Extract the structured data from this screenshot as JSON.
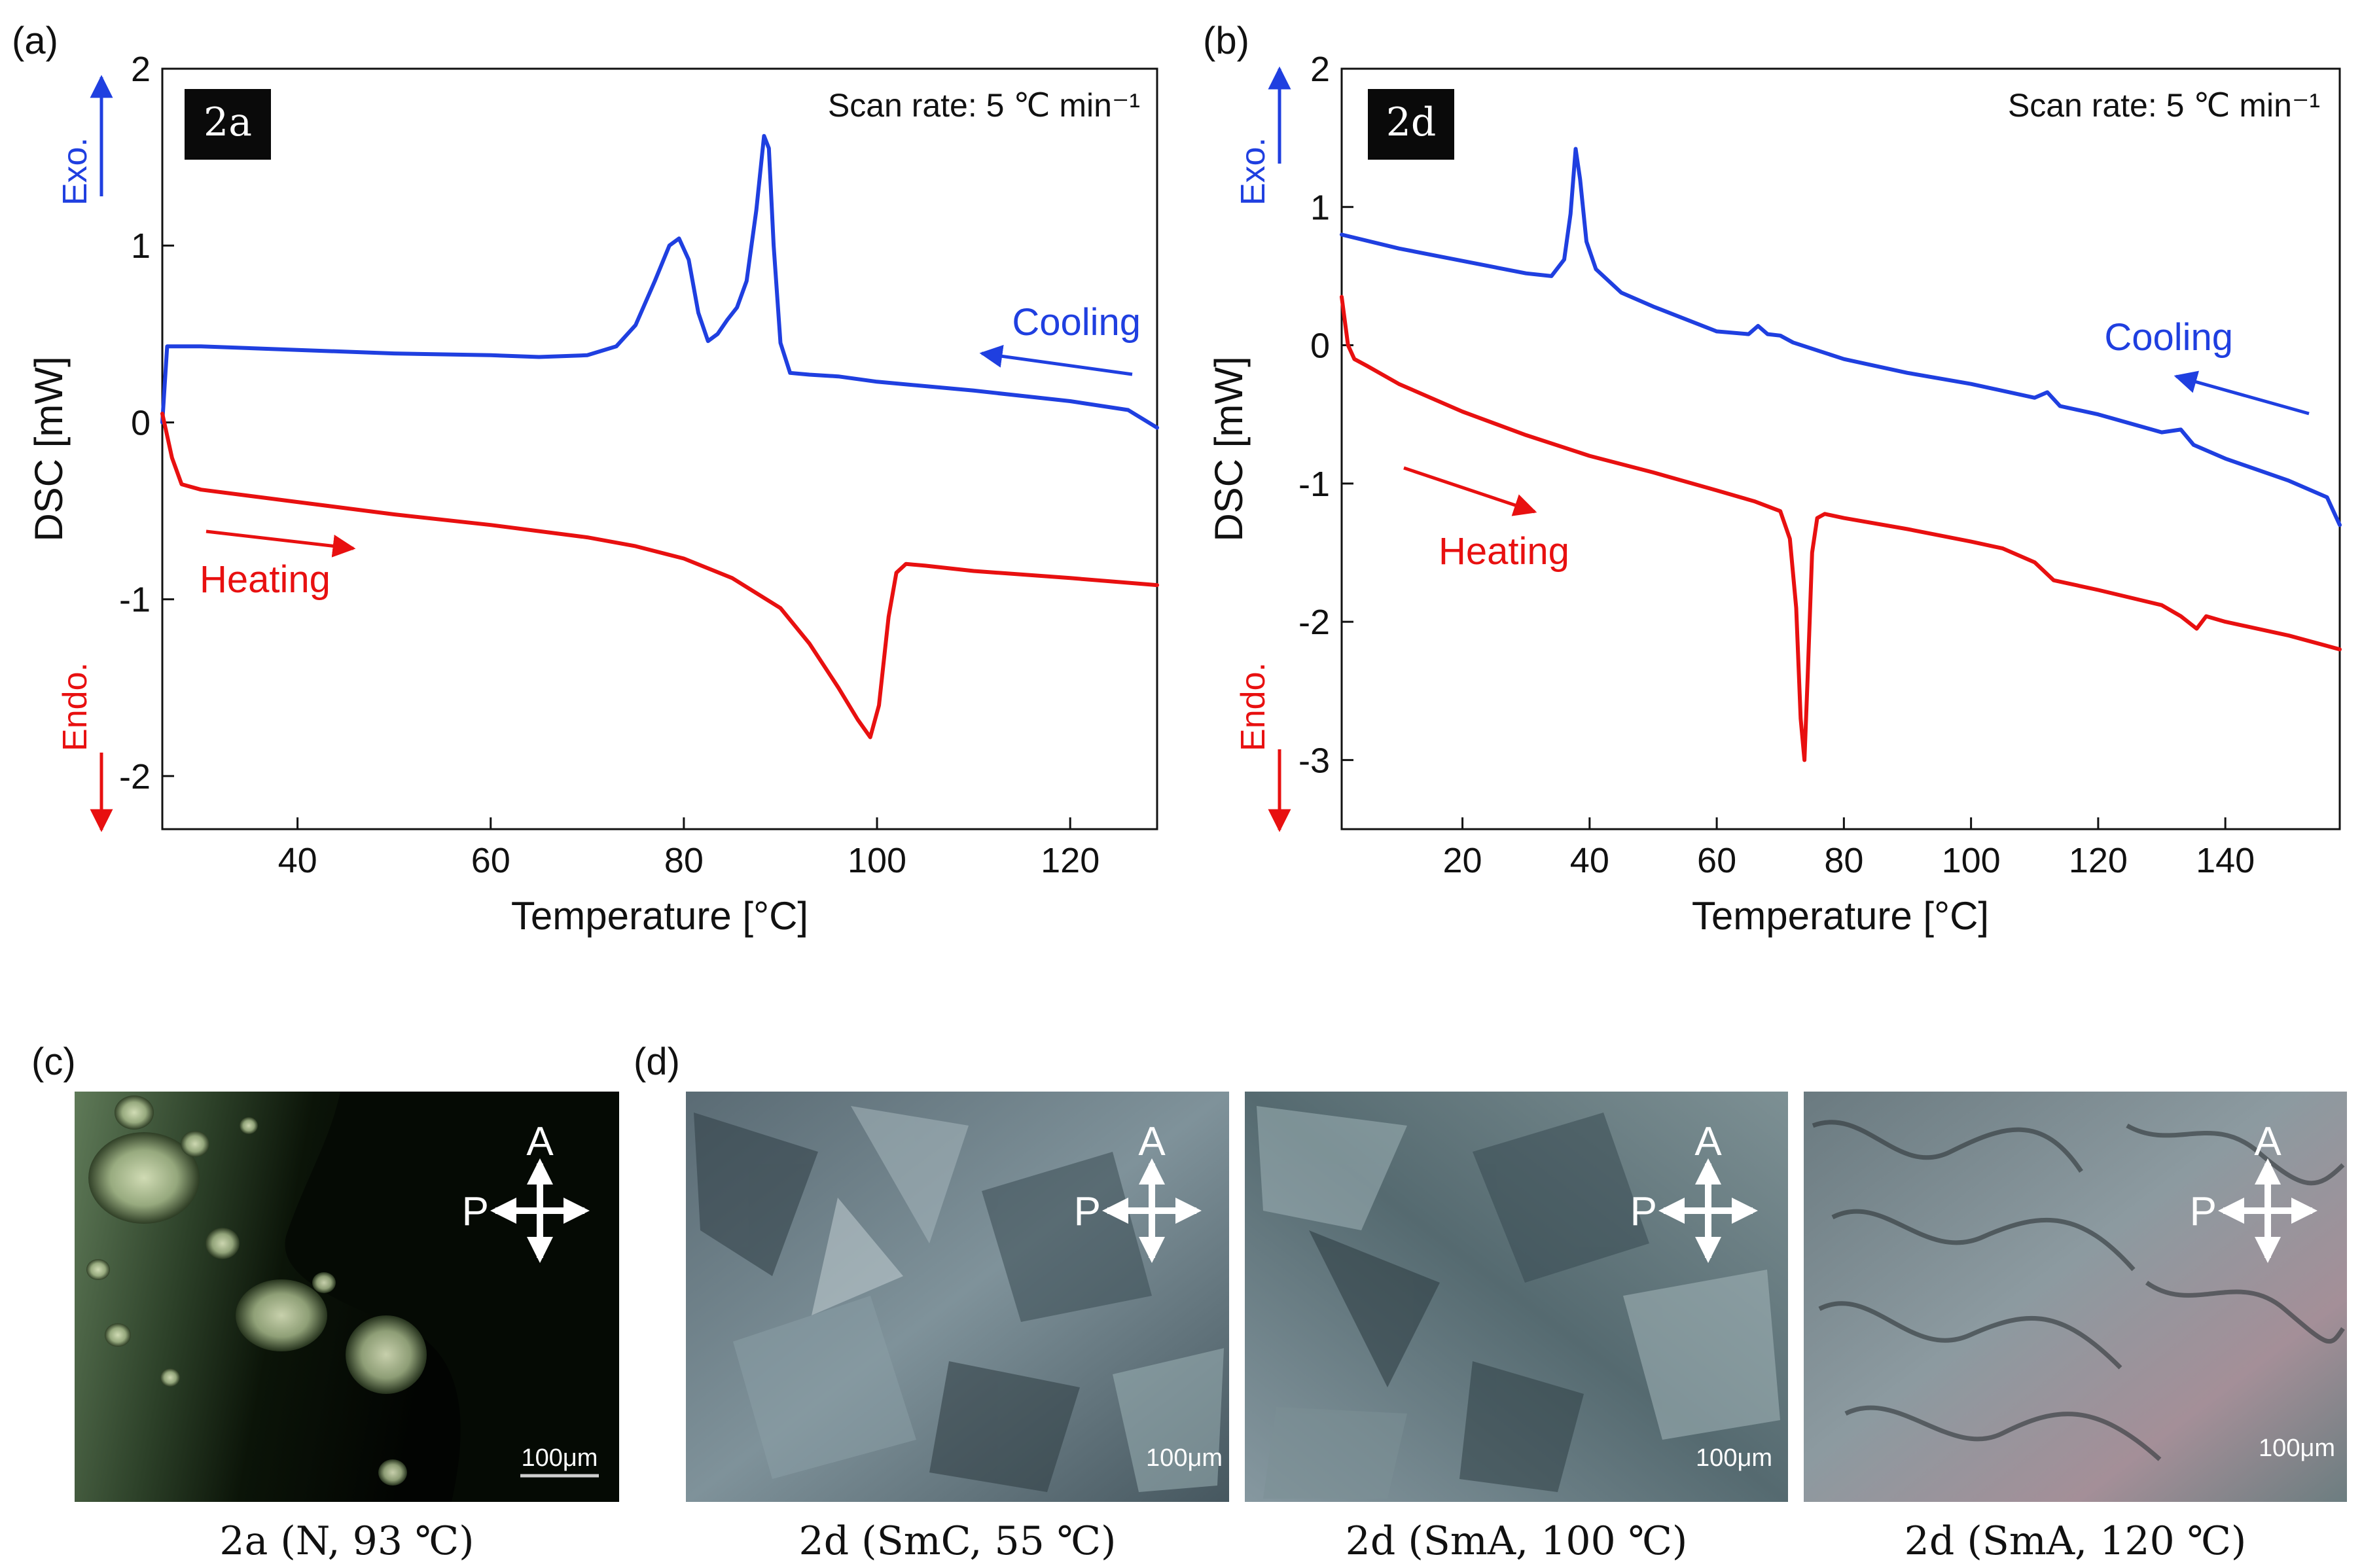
{
  "chart_data": [
    {
      "type": "line",
      "panel_label": "(a)",
      "sample_label": "2a",
      "scan_rate": "Scan rate: 5 ℃ min⁻¹",
      "xlabel": "Temperature [°C]",
      "ylabel": "DSC [mW]",
      "xlim": [
        26,
        129
      ],
      "ylim": [
        -2.3,
        2.0
      ],
      "xticks": [
        40,
        60,
        80,
        100,
        120
      ],
      "yticks": [
        -2,
        -1,
        0,
        1,
        2
      ],
      "exo_label": "Exo.",
      "endo_label": "Endo.",
      "series": [
        {
          "name": "Cooling",
          "color": "#1f3fe0",
          "x": [
            26,
            26.5,
            30,
            40,
            50,
            60,
            65,
            70,
            73,
            75,
            77,
            78.5,
            79.5,
            80.5,
            81.5,
            82.5,
            83.5,
            84.5,
            85.5,
            86.5,
            87.5,
            88.3,
            88.8,
            89.3,
            90,
            91,
            93,
            96,
            100,
            110,
            120,
            126,
            129
          ],
          "y": [
            0.0,
            0.43,
            0.43,
            0.41,
            0.39,
            0.38,
            0.37,
            0.38,
            0.43,
            0.55,
            0.8,
            1.0,
            1.04,
            0.92,
            0.62,
            0.46,
            0.5,
            0.58,
            0.65,
            0.8,
            1.2,
            1.62,
            1.55,
            1.0,
            0.45,
            0.28,
            0.27,
            0.26,
            0.23,
            0.18,
            0.12,
            0.07,
            -0.03
          ]
        },
        {
          "name": "Heating",
          "color": "#e81010",
          "x": [
            26,
            27,
            28,
            30,
            40,
            50,
            60,
            70,
            75,
            80,
            85,
            90,
            93,
            96,
            98,
            99.3,
            100.2,
            101.2,
            102,
            103,
            105,
            110,
            120,
            129
          ],
          "y": [
            0.05,
            -0.2,
            -0.35,
            -0.38,
            -0.45,
            -0.52,
            -0.58,
            -0.65,
            -0.7,
            -0.77,
            -0.88,
            -1.05,
            -1.25,
            -1.5,
            -1.68,
            -1.78,
            -1.6,
            -1.1,
            -0.85,
            -0.8,
            -0.81,
            -0.84,
            -0.88,
            -0.92
          ]
        }
      ],
      "annotations": [
        "Cooling",
        "Heating"
      ]
    },
    {
      "type": "line",
      "panel_label": "(b)",
      "sample_label": "2d",
      "scan_rate": "Scan rate: 5 ℃ min⁻¹",
      "xlabel": "Temperature [°C]",
      "ylabel": "DSC [mW]",
      "xlim": [
        1,
        158
      ],
      "ylim": [
        -3.5,
        2.0
      ],
      "xticks": [
        20,
        40,
        60,
        80,
        100,
        120,
        140
      ],
      "yticks": [
        -3,
        -2,
        -1,
        0,
        1,
        2
      ],
      "exo_label": "Exo.",
      "endo_label": "Endo.",
      "series": [
        {
          "name": "Cooling",
          "color": "#1f3fe0",
          "x": [
            1,
            10,
            20,
            30,
            34,
            36,
            37,
            37.8,
            38.5,
            39.5,
            41,
            45,
            50,
            60,
            65,
            66.5,
            68,
            70,
            72,
            80,
            90,
            100,
            110,
            112,
            114,
            120,
            130,
            133,
            135,
            140,
            150,
            156,
            158
          ],
          "y": [
            0.8,
            0.7,
            0.61,
            0.52,
            0.5,
            0.62,
            0.95,
            1.42,
            1.2,
            0.75,
            0.55,
            0.38,
            0.28,
            0.1,
            0.08,
            0.14,
            0.08,
            0.07,
            0.02,
            -0.1,
            -0.2,
            -0.28,
            -0.38,
            -0.34,
            -0.44,
            -0.5,
            -0.63,
            -0.61,
            -0.72,
            -0.82,
            -0.98,
            -1.1,
            -1.3
          ]
        },
        {
          "name": "Heating",
          "color": "#e81010",
          "x": [
            1,
            2,
            3,
            5,
            10,
            20,
            30,
            40,
            50,
            60,
            66,
            70,
            71.5,
            72.5,
            73.2,
            73.8,
            74.3,
            75,
            75.8,
            77,
            80,
            90,
            100,
            105,
            110,
            113,
            115,
            120,
            130,
            133,
            135.5,
            137,
            140,
            150,
            158
          ],
          "y": [
            0.35,
            0.0,
            -0.1,
            -0.15,
            -0.28,
            -0.48,
            -0.65,
            -0.8,
            -0.92,
            -1.05,
            -1.13,
            -1.2,
            -1.4,
            -1.9,
            -2.7,
            -3.0,
            -2.4,
            -1.5,
            -1.25,
            -1.22,
            -1.25,
            -1.33,
            -1.42,
            -1.47,
            -1.57,
            -1.7,
            -1.72,
            -1.77,
            -1.88,
            -1.96,
            -2.05,
            -1.96,
            -2.0,
            -2.1,
            -2.2
          ]
        }
      ],
      "annotations": [
        "Cooling",
        "Heating"
      ]
    }
  ],
  "micrographs": {
    "panel_c_label": "(c)",
    "panel_d_label": "(d)",
    "scale_bar": "100μm",
    "analyzer": "A",
    "polarizer": "P",
    "images": [
      {
        "caption": "2a (N, 93 ℃)",
        "base_color": "#050a04"
      },
      {
        "caption": "2d (SmC, 55 ℃)",
        "base_color": "#5e7078"
      },
      {
        "caption": "2d (SmA, 100 ℃)",
        "base_color": "#5f7479"
      },
      {
        "caption": "2d (SmA, 120 ℃)",
        "base_color": "#76868a"
      }
    ]
  },
  "colors": {
    "cooling": "#1f3fe0",
    "heating": "#e81010",
    "exo": "#1f3fe0",
    "endo": "#e81010"
  }
}
